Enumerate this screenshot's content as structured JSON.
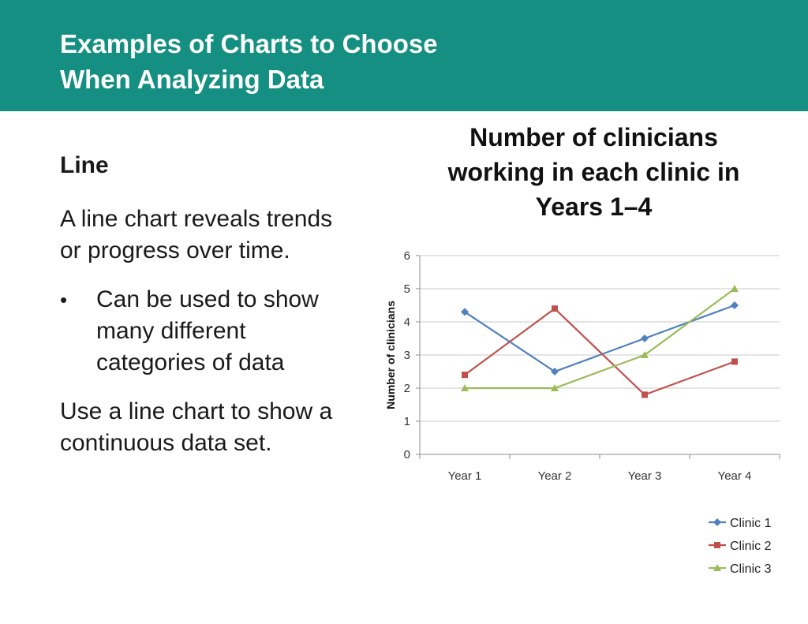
{
  "header": {
    "title": "Examples of Charts to Choose\nWhen Analyzing Data",
    "background": "#148f82"
  },
  "content": {
    "heading": "Line",
    "intro": "A line chart reveals trends or progress over time.",
    "bullet_mark": "•",
    "bullet": "Can be used to show many different categories of data",
    "closing": "Use a line chart to show a continuous data set."
  },
  "chart_data": {
    "type": "line",
    "title": "Number of clinicians working in each clinic in Years 1–4",
    "xlabel": "",
    "ylabel": "Number of clinicians",
    "categories": [
      "Year 1",
      "Year 2",
      "Year 3",
      "Year 4"
    ],
    "ylim": [
      0,
      6
    ],
    "yticks": [
      0,
      1,
      2,
      3,
      4,
      5,
      6
    ],
    "grid": true,
    "legend_position": "bottom-right",
    "series": [
      {
        "name": "Clinic 1",
        "values": [
          4.3,
          2.5,
          3.5,
          4.5
        ],
        "color": "#4f81bd",
        "marker": "diamond"
      },
      {
        "name": "Clinic 2",
        "values": [
          2.4,
          4.4,
          1.8,
          2.8
        ],
        "color": "#c0504d",
        "marker": "square"
      },
      {
        "name": "Clinic 3",
        "values": [
          2.0,
          2.0,
          3.0,
          5.0
        ],
        "color": "#9bbb59",
        "marker": "triangle"
      }
    ]
  }
}
